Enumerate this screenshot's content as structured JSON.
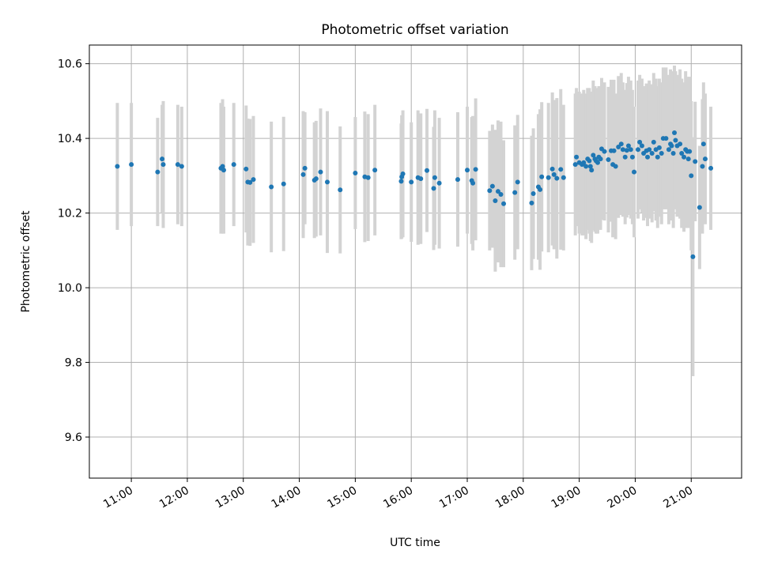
{
  "chart_data": {
    "type": "scatter",
    "title": "Photometric offset variation",
    "xlabel": "UTC time",
    "ylabel": "Photometric offset",
    "x_unit": "UTC hour",
    "xlim": [
      10.25,
      21.9
    ],
    "ylim": [
      9.49,
      10.65
    ],
    "grid": true,
    "x_ticks": [
      11,
      12,
      13,
      14,
      15,
      16,
      17,
      18,
      19,
      20,
      21
    ],
    "x_tick_labels": [
      "11:00",
      "12:00",
      "13:00",
      "14:00",
      "15:00",
      "16:00",
      "17:00",
      "18:00",
      "19:00",
      "20:00",
      "21:00"
    ],
    "y_ticks": [
      9.6,
      9.8,
      10.0,
      10.2,
      10.4,
      10.6
    ],
    "y_tick_labels": [
      "9.6",
      "9.8",
      "10.0",
      "10.2",
      "10.4",
      "10.6"
    ],
    "colors": {
      "points": "#1f77b4",
      "errorbars": "#d3d3d3",
      "grid": "#b0b0b0"
    },
    "series": [
      {
        "x": [
          10.75,
          11.0,
          11.47,
          11.55,
          11.57,
          11.83,
          11.9,
          12.6,
          12.63,
          12.65,
          12.83,
          13.05,
          13.08,
          13.12,
          13.18,
          13.5,
          13.72,
          14.07,
          14.1,
          14.27,
          14.3,
          14.38,
          14.5,
          14.73,
          15.0,
          15.17,
          15.23,
          15.35,
          15.82,
          15.83,
          15.85,
          16.0,
          16.12,
          16.17,
          16.28,
          16.4,
          16.42,
          16.5,
          16.83,
          17.0,
          17.08,
          17.1,
          17.15,
          17.4,
          17.45,
          17.5,
          17.55,
          17.6,
          17.65,
          17.85,
          17.9,
          18.15,
          18.18,
          18.27,
          18.3,
          18.33,
          18.45,
          18.52,
          18.55,
          18.6,
          18.67,
          18.72,
          18.93,
          18.95,
          19.0,
          19.05,
          19.08,
          19.12,
          19.15,
          19.18,
          19.2,
          19.22,
          19.25,
          19.28,
          19.3,
          19.33,
          19.35,
          19.38,
          19.4,
          19.45,
          19.52,
          19.57,
          19.6,
          19.62,
          19.65,
          19.7,
          19.75,
          19.78,
          19.82,
          19.85,
          19.88,
          19.92,
          19.95,
          19.98,
          20.05,
          20.08,
          20.12,
          20.15,
          20.2,
          20.22,
          20.25,
          20.3,
          20.33,
          20.37,
          20.4,
          20.43,
          20.47,
          20.5,
          20.55,
          20.6,
          20.63,
          20.65,
          20.68,
          20.7,
          20.72,
          20.75,
          20.8,
          20.83,
          20.87,
          20.9,
          20.93,
          20.95,
          20.97,
          21.0,
          21.03,
          21.07,
          21.15,
          21.2,
          21.22,
          21.25,
          21.35
        ],
        "y": [
          10.325,
          10.33,
          10.31,
          10.345,
          10.33,
          10.33,
          10.325,
          10.32,
          10.325,
          10.315,
          10.33,
          10.318,
          10.283,
          10.282,
          10.29,
          10.27,
          10.278,
          10.303,
          10.32,
          10.288,
          10.292,
          10.31,
          10.283,
          10.262,
          10.307,
          10.297,
          10.295,
          10.315,
          10.285,
          10.297,
          10.305,
          10.283,
          10.295,
          10.292,
          10.314,
          10.266,
          10.295,
          10.28,
          10.29,
          10.315,
          10.287,
          10.28,
          10.317,
          10.26,
          10.272,
          10.233,
          10.258,
          10.25,
          10.225,
          10.255,
          10.283,
          10.227,
          10.252,
          10.27,
          10.263,
          10.297,
          10.295,
          10.318,
          10.303,
          10.293,
          10.317,
          10.295,
          10.33,
          10.35,
          10.335,
          10.33,
          10.335,
          10.325,
          10.345,
          10.34,
          10.325,
          10.315,
          10.355,
          10.345,
          10.34,
          10.335,
          10.35,
          10.345,
          10.372,
          10.365,
          10.343,
          10.367,
          10.33,
          10.367,
          10.325,
          10.377,
          10.385,
          10.37,
          10.35,
          10.368,
          10.38,
          10.37,
          10.35,
          10.31,
          10.37,
          10.39,
          10.38,
          10.36,
          10.367,
          10.35,
          10.37,
          10.36,
          10.39,
          10.37,
          10.35,
          10.375,
          10.36,
          10.4,
          10.4,
          10.37,
          10.385,
          10.38,
          10.36,
          10.415,
          10.395,
          10.38,
          10.385,
          10.36,
          10.35,
          10.37,
          10.365,
          10.345,
          10.365,
          10.3,
          10.083,
          10.338,
          10.215,
          10.325,
          10.385,
          10.345,
          10.32
        ],
        "err": [
          0.17,
          0.165,
          0.145,
          0.145,
          0.17,
          0.16,
          0.16,
          0.175,
          0.18,
          0.17,
          0.165,
          0.17,
          0.17,
          0.17,
          0.17,
          0.175,
          0.18,
          0.17,
          0.15,
          0.155,
          0.155,
          0.17,
          0.19,
          0.17,
          0.15,
          0.175,
          0.17,
          0.175,
          0.155,
          0.165,
          0.17,
          0.16,
          0.18,
          0.175,
          0.165,
          0.165,
          0.18,
          0.175,
          0.18,
          0.17,
          0.17,
          0.18,
          0.19,
          0.16,
          0.165,
          0.19,
          0.19,
          0.195,
          0.17,
          0.18,
          0.18,
          0.18,
          0.175,
          0.195,
          0.215,
          0.2,
          0.2,
          0.205,
          0.2,
          0.215,
          0.215,
          0.195,
          0.19,
          0.185,
          0.19,
          0.19,
          0.195,
          0.195,
          0.19,
          0.195,
          0.2,
          0.195,
          0.2,
          0.195,
          0.195,
          0.19,
          0.19,
          0.19,
          0.19,
          0.185,
          0.195,
          0.19,
          0.195,
          0.19,
          0.195,
          0.19,
          0.19,
          0.18,
          0.18,
          0.18,
          0.185,
          0.185,
          0.18,
          0.175,
          0.185,
          0.18,
          0.18,
          0.18,
          0.18,
          0.185,
          0.185,
          0.185,
          0.185,
          0.19,
          0.19,
          0.185,
          0.19,
          0.19,
          0.19,
          0.2,
          0.2,
          0.2,
          0.2,
          0.18,
          0.185,
          0.19,
          0.2,
          0.2,
          0.2,
          0.21,
          0.2,
          0.185,
          0.2,
          0.2,
          0.32,
          0.16,
          0.165,
          0.18,
          0.165,
          0.175,
          0.165
        ]
      }
    ]
  }
}
